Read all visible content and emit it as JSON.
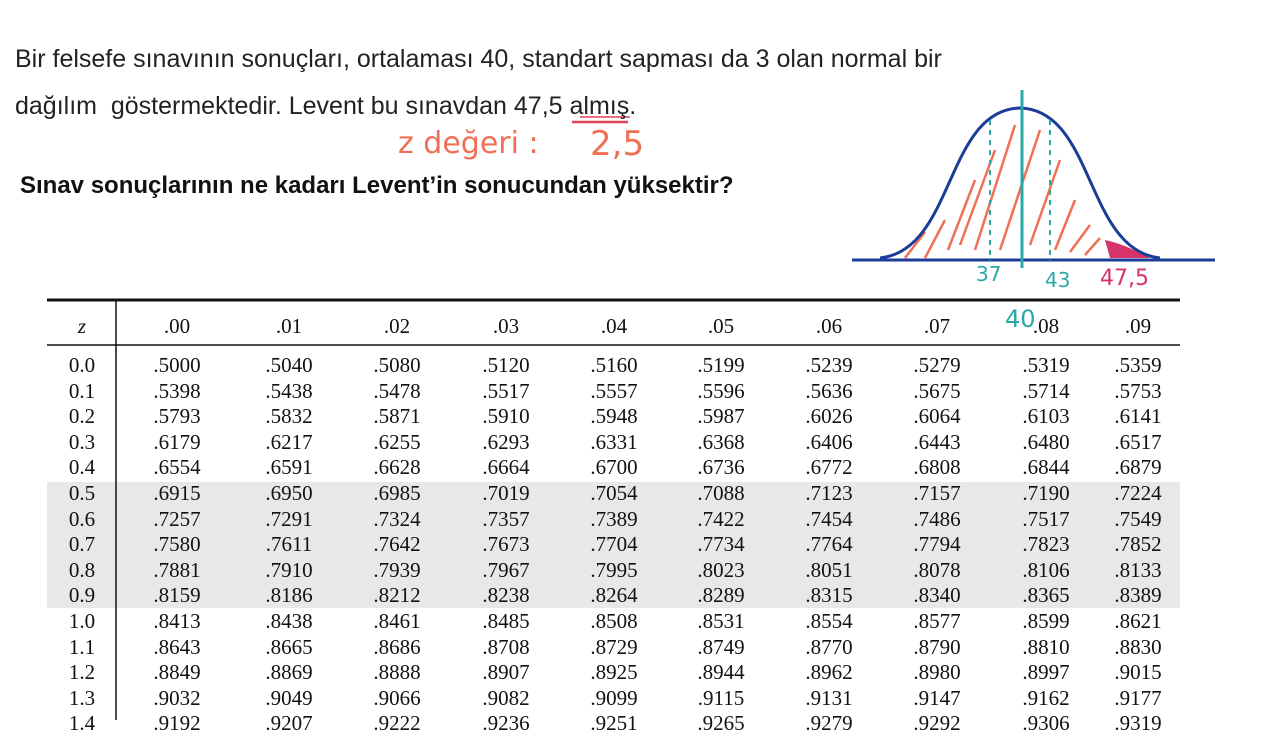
{
  "question": {
    "line1": "Bir felsefe sınavının sonuçları, ortalaması 40, standart sapması da 3 olan normal bir",
    "line2": "dağılım  göstermektedir. Levent bu sınavdan 47,5 almış.",
    "ask": "Sınav sonuçlarının ne kadarı Levent’in sonucundan yüksektir?"
  },
  "annotations": {
    "z_label": "z değeri :",
    "z_value": "2,5",
    "left": "37",
    "mean": "40",
    "right": "43",
    "score": "47,5"
  },
  "table": {
    "header": [
      "z",
      ".00",
      ".01",
      ".02",
      ".03",
      ".04",
      ".05",
      ".06",
      ".07",
      ".08",
      ".09"
    ],
    "rows": [
      [
        "0.0",
        ".5000",
        ".5040",
        ".5080",
        ".5120",
        ".5160",
        ".5199",
        ".5239",
        ".5279",
        ".5319",
        ".5359"
      ],
      [
        "0.1",
        ".5398",
        ".5438",
        ".5478",
        ".5517",
        ".5557",
        ".5596",
        ".5636",
        ".5675",
        ".5714",
        ".5753"
      ],
      [
        "0.2",
        ".5793",
        ".5832",
        ".5871",
        ".5910",
        ".5948",
        ".5987",
        ".6026",
        ".6064",
        ".6103",
        ".6141"
      ],
      [
        "0.3",
        ".6179",
        ".6217",
        ".6255",
        ".6293",
        ".6331",
        ".6368",
        ".6406",
        ".6443",
        ".6480",
        ".6517"
      ],
      [
        "0.4",
        ".6554",
        ".6591",
        ".6628",
        ".6664",
        ".6700",
        ".6736",
        ".6772",
        ".6808",
        ".6844",
        ".6879"
      ],
      [
        "0.5",
        ".6915",
        ".6950",
        ".6985",
        ".7019",
        ".7054",
        ".7088",
        ".7123",
        ".7157",
        ".7190",
        ".7224"
      ],
      [
        "0.6",
        ".7257",
        ".7291",
        ".7324",
        ".7357",
        ".7389",
        ".7422",
        ".7454",
        ".7486",
        ".7517",
        ".7549"
      ],
      [
        "0.7",
        ".7580",
        ".7611",
        ".7642",
        ".7673",
        ".7704",
        ".7734",
        ".7764",
        ".7794",
        ".7823",
        ".7852"
      ],
      [
        "0.8",
        ".7881",
        ".7910",
        ".7939",
        ".7967",
        ".7995",
        ".8023",
        ".8051",
        ".8078",
        ".8106",
        ".8133"
      ],
      [
        "0.9",
        ".8159",
        ".8186",
        ".8212",
        ".8238",
        ".8264",
        ".8289",
        ".8315",
        ".8340",
        ".8365",
        ".8389"
      ],
      [
        "1.0",
        ".8413",
        ".8438",
        ".8461",
        ".8485",
        ".8508",
        ".8531",
        ".8554",
        ".8577",
        ".8599",
        ".8621"
      ],
      [
        "1.1",
        ".8643",
        ".8665",
        ".8686",
        ".8708",
        ".8729",
        ".8749",
        ".8770",
        ".8790",
        ".8810",
        ".8830"
      ],
      [
        "1.2",
        ".8849",
        ".8869",
        ".8888",
        ".8907",
        ".8925",
        ".8944",
        ".8962",
        ".8980",
        ".8997",
        ".9015"
      ],
      [
        "1.3",
        ".9032",
        ".9049",
        ".9066",
        ".9082",
        ".9099",
        ".9115",
        ".9131",
        ".9147",
        ".9162",
        ".9177"
      ],
      [
        "1.4",
        ".9192",
        ".9207",
        ".9222",
        ".9236",
        ".9251",
        ".9265",
        ".9279",
        ".9292",
        ".9306",
        ".9319"
      ]
    ]
  }
}
